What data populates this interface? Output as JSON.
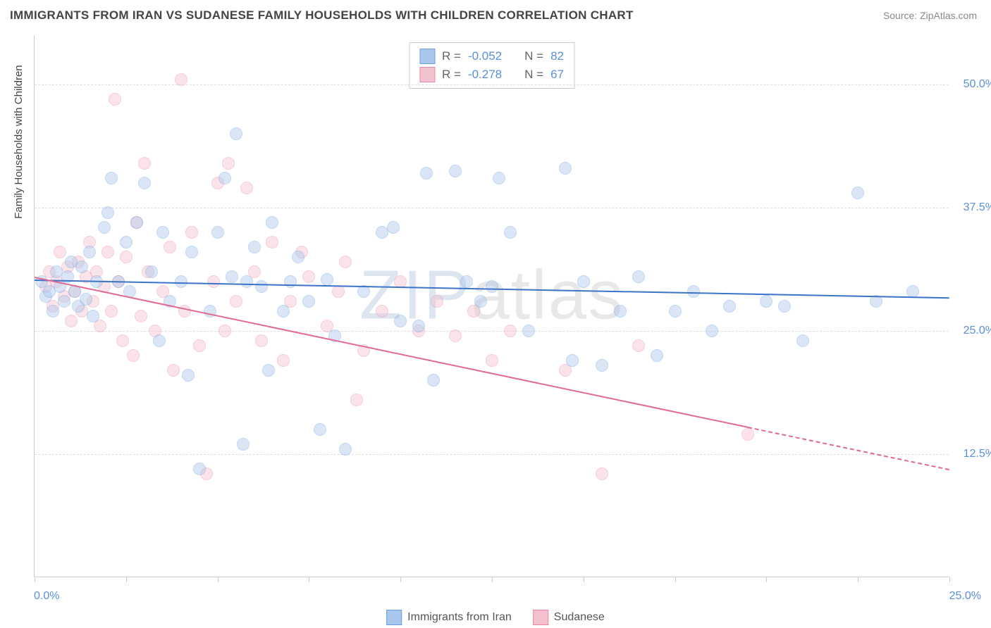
{
  "title": "IMMIGRANTS FROM IRAN VS SUDANESE FAMILY HOUSEHOLDS WITH CHILDREN CORRELATION CHART",
  "source": "Source: ZipAtlas.com",
  "yaxis_label": "Family Households with Children",
  "watermark_a": "ZIP",
  "watermark_b": "atlas",
  "chart": {
    "type": "scatter",
    "xlim": [
      0,
      25
    ],
    "ylim": [
      0,
      55
    ],
    "background_color": "#ffffff",
    "grid_color": "#dddddd",
    "axis_color": "#cccccc",
    "x_tick_positions": [
      0,
      2.5,
      5,
      7.5,
      10,
      12.5,
      15,
      17.5,
      20,
      22.5,
      25
    ],
    "x_tick_labels": {
      "min": "0.0%",
      "max": "25.0%"
    },
    "y_gridlines": [
      12.5,
      25.0,
      37.5,
      50.0
    ],
    "y_tick_labels": [
      "12.5%",
      "25.0%",
      "37.5%",
      "50.0%"
    ],
    "tick_label_color": "#5b8fd6",
    "tick_label_fontsize": 16,
    "marker_radius": 9,
    "marker_opacity": 0.42
  },
  "series": [
    {
      "name": "Immigrants from Iran",
      "fill_color": "#a9c6ec",
      "stroke_color": "#6d9edf",
      "line_color": "#3b74c9",
      "R": "-0.052",
      "N": "82",
      "trend": {
        "x1": 0,
        "y1": 30.2,
        "x2": 25,
        "y2": 28.4,
        "solid_until_x": 25
      },
      "points": [
        [
          0.2,
          30
        ],
        [
          0.3,
          28.5
        ],
        [
          0.4,
          29
        ],
        [
          0.5,
          27
        ],
        [
          0.6,
          31
        ],
        [
          0.7,
          29.5
        ],
        [
          0.8,
          28
        ],
        [
          0.9,
          30.5
        ],
        [
          1.0,
          32
        ],
        [
          1.1,
          29
        ],
        [
          1.2,
          27.5
        ],
        [
          1.3,
          31.5
        ],
        [
          1.4,
          28.2
        ],
        [
          1.5,
          33
        ],
        [
          1.6,
          26.5
        ],
        [
          1.7,
          30
        ],
        [
          1.9,
          35.5
        ],
        [
          2.0,
          37
        ],
        [
          2.1,
          40.5
        ],
        [
          2.3,
          30
        ],
        [
          2.5,
          34
        ],
        [
          2.6,
          29
        ],
        [
          2.8,
          36
        ],
        [
          3.0,
          40
        ],
        [
          3.2,
          31
        ],
        [
          3.4,
          24
        ],
        [
          3.5,
          35
        ],
        [
          3.7,
          28
        ],
        [
          4.0,
          30
        ],
        [
          4.2,
          20.5
        ],
        [
          4.3,
          33
        ],
        [
          4.5,
          11
        ],
        [
          4.8,
          27
        ],
        [
          5.0,
          35
        ],
        [
          5.2,
          40.5
        ],
        [
          5.4,
          30.5
        ],
        [
          5.5,
          45
        ],
        [
          5.7,
          13.5
        ],
        [
          5.8,
          30
        ],
        [
          6.0,
          33.5
        ],
        [
          6.2,
          29.5
        ],
        [
          6.4,
          21
        ],
        [
          6.5,
          36
        ],
        [
          6.8,
          27
        ],
        [
          7.0,
          30
        ],
        [
          7.2,
          32.5
        ],
        [
          7.5,
          28
        ],
        [
          7.8,
          15
        ],
        [
          8.0,
          30.2
        ],
        [
          8.2,
          24.5
        ],
        [
          8.5,
          13
        ],
        [
          9.0,
          29
        ],
        [
          9.5,
          35
        ],
        [
          9.8,
          35.5
        ],
        [
          10.0,
          26
        ],
        [
          10.5,
          25.5
        ],
        [
          10.7,
          41
        ],
        [
          10.9,
          20
        ],
        [
          11.5,
          41.2
        ],
        [
          11.8,
          30
        ],
        [
          12.2,
          28
        ],
        [
          12.5,
          29.5
        ],
        [
          12.7,
          40.5
        ],
        [
          13.0,
          35
        ],
        [
          13.5,
          25
        ],
        [
          14.5,
          41.5
        ],
        [
          14.7,
          22
        ],
        [
          15.0,
          30
        ],
        [
          15.5,
          21.5
        ],
        [
          16.0,
          27
        ],
        [
          16.5,
          30.5
        ],
        [
          17.0,
          22.5
        ],
        [
          17.5,
          27
        ],
        [
          18.0,
          29
        ],
        [
          18.5,
          25
        ],
        [
          19.0,
          27.5
        ],
        [
          20.0,
          28
        ],
        [
          20.5,
          27.5
        ],
        [
          21.0,
          24
        ],
        [
          22.5,
          39
        ],
        [
          23.0,
          28
        ],
        [
          24.0,
          29
        ]
      ]
    },
    {
      "name": "Sudanese",
      "fill_color": "#f4c1cf",
      "stroke_color": "#e88aa5",
      "line_color": "#e16993",
      "R": "-0.278",
      "N": "67",
      "trend": {
        "x1": 0,
        "y1": 30.5,
        "x2": 25,
        "y2": 11.0,
        "solid_until_x": 19.5
      },
      "points": [
        [
          0.3,
          29.5
        ],
        [
          0.4,
          31
        ],
        [
          0.5,
          27.5
        ],
        [
          0.6,
          30
        ],
        [
          0.7,
          33
        ],
        [
          0.8,
          28.5
        ],
        [
          0.9,
          31.5
        ],
        [
          1.0,
          26
        ],
        [
          1.1,
          29
        ],
        [
          1.2,
          32
        ],
        [
          1.3,
          27
        ],
        [
          1.4,
          30.5
        ],
        [
          1.5,
          34
        ],
        [
          1.6,
          28
        ],
        [
          1.7,
          31
        ],
        [
          1.8,
          25.5
        ],
        [
          1.9,
          29.5
        ],
        [
          2.0,
          33
        ],
        [
          2.1,
          27
        ],
        [
          2.2,
          48.5
        ],
        [
          2.3,
          30
        ],
        [
          2.4,
          24
        ],
        [
          2.5,
          32.5
        ],
        [
          2.7,
          22.5
        ],
        [
          2.8,
          36
        ],
        [
          2.9,
          26.5
        ],
        [
          3.0,
          42
        ],
        [
          3.1,
          31
        ],
        [
          3.3,
          25
        ],
        [
          3.5,
          29
        ],
        [
          3.7,
          33.5
        ],
        [
          3.8,
          21
        ],
        [
          4.0,
          50.5
        ],
        [
          4.1,
          27
        ],
        [
          4.3,
          35
        ],
        [
          4.5,
          23.5
        ],
        [
          4.7,
          10.5
        ],
        [
          4.9,
          30
        ],
        [
          5.0,
          40
        ],
        [
          5.2,
          25
        ],
        [
          5.3,
          42
        ],
        [
          5.5,
          28
        ],
        [
          5.8,
          39.5
        ],
        [
          6.0,
          31
        ],
        [
          6.2,
          24
        ],
        [
          6.5,
          34
        ],
        [
          6.8,
          22
        ],
        [
          7.0,
          28
        ],
        [
          7.3,
          33
        ],
        [
          7.5,
          30.5
        ],
        [
          8.0,
          25.5
        ],
        [
          8.3,
          29
        ],
        [
          8.5,
          32
        ],
        [
          8.8,
          18
        ],
        [
          9.0,
          23
        ],
        [
          9.5,
          27
        ],
        [
          10.0,
          30
        ],
        [
          10.5,
          25
        ],
        [
          11.0,
          28
        ],
        [
          11.5,
          24.5
        ],
        [
          12.0,
          27
        ],
        [
          12.5,
          22
        ],
        [
          13.0,
          25
        ],
        [
          14.5,
          21
        ],
        [
          15.5,
          10.5
        ],
        [
          16.5,
          23.5
        ],
        [
          19.5,
          14.5
        ]
      ]
    }
  ],
  "legend_top": {
    "R_label": "R =",
    "N_label": "N ="
  },
  "legend_bottom": {
    "items": [
      "Immigrants from Iran",
      "Sudanese"
    ]
  }
}
